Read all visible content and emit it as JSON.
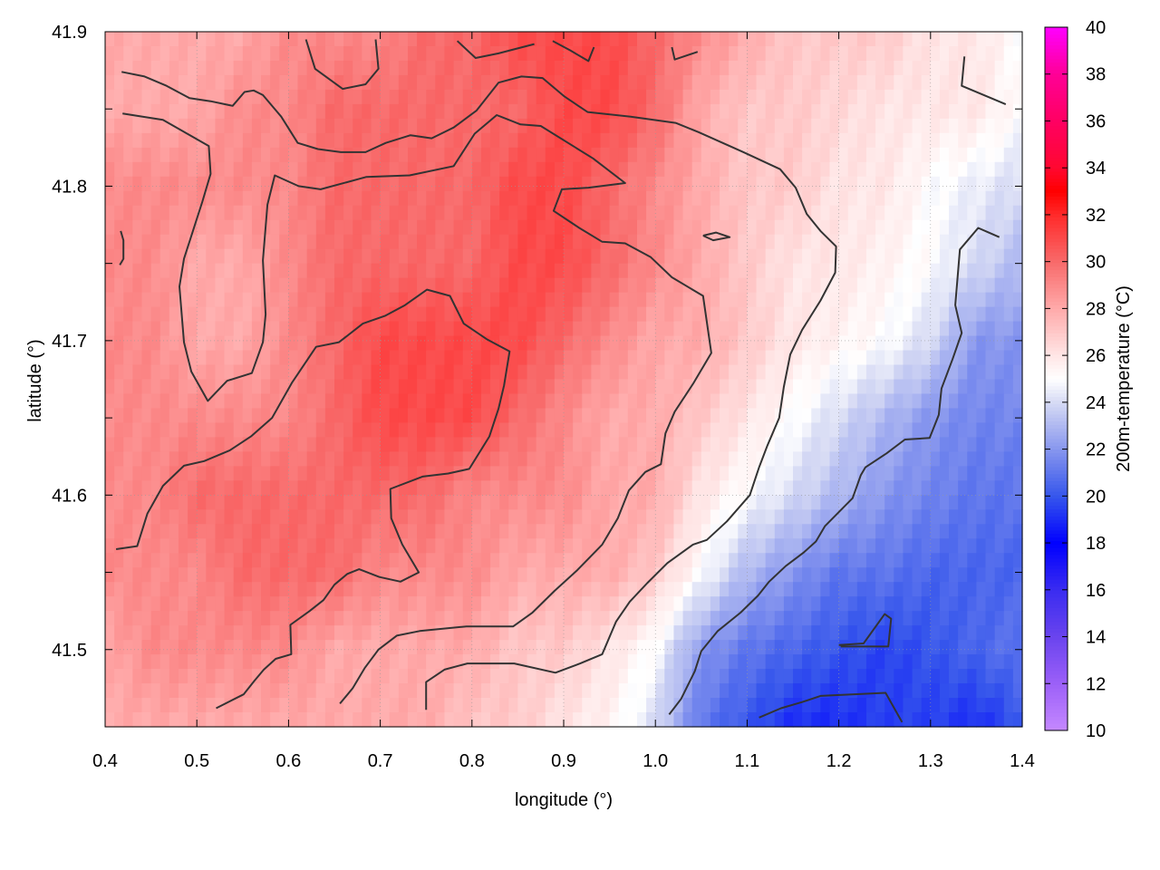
{
  "chart_data": {
    "type": "heatmap",
    "xlabel": "longitude (°)",
    "ylabel": "latitude (°)",
    "colorbar_label": "200m-temperature (°C)",
    "xlim": [
      0.4,
      1.4
    ],
    "ylim": [
      41.45,
      41.9
    ],
    "xticks": [
      "0.4",
      "0.5",
      "0.6",
      "0.7",
      "0.8",
      "0.9",
      "1.0",
      "1.1",
      "1.2",
      "1.3",
      "1.4"
    ],
    "yticks": [
      "41.5",
      "41.6",
      "41.7",
      "41.8",
      "41.9"
    ],
    "clim": [
      10,
      40
    ],
    "cticks": [
      "10",
      "12",
      "14",
      "16",
      "18",
      "20",
      "22",
      "24",
      "26",
      "28",
      "30",
      "32",
      "34",
      "36",
      "38",
      "40"
    ],
    "colormap": [
      [
        10,
        "#c488ff"
      ],
      [
        12,
        "#9c60f8"
      ],
      [
        14,
        "#6a44ee"
      ],
      [
        16,
        "#3a2cf0"
      ],
      [
        18,
        "#0000ff"
      ],
      [
        20,
        "#3656ec"
      ],
      [
        22,
        "#8796ee"
      ],
      [
        24,
        "#d6daf4"
      ],
      [
        25,
        "#ffffff"
      ],
      [
        26,
        "#ffe6e6"
      ],
      [
        28,
        "#ffaaaa"
      ],
      [
        30,
        "#f86a6a"
      ],
      [
        32,
        "#ff2a2a"
      ],
      [
        33,
        "#ff0000"
      ],
      [
        34,
        "#ff0830"
      ],
      [
        36,
        "#ff0062"
      ],
      [
        38,
        "#ff0096"
      ],
      [
        40,
        "#ff00ff"
      ]
    ],
    "grid_x": [
      0.4,
      0.45,
      0.5,
      0.55,
      0.6,
      0.65,
      0.7,
      0.75,
      0.8,
      0.85,
      0.9,
      0.95,
      1.0,
      1.05,
      1.1,
      1.15,
      1.2,
      1.25,
      1.3,
      1.35,
      1.4
    ],
    "grid_y": [
      41.9,
      41.85,
      41.8,
      41.75,
      41.7,
      41.65,
      41.6,
      41.55,
      41.5,
      41.45
    ],
    "z": [
      [
        28,
        28,
        28,
        28,
        29,
        29,
        29,
        30,
        30,
        31,
        31,
        31,
        30,
        29,
        28,
        27,
        27,
        27,
        26,
        26,
        25
      ],
      [
        28,
        28,
        28,
        29,
        29,
        30,
        30,
        30,
        30,
        30,
        31,
        31,
        30,
        28,
        27,
        27,
        26.5,
        26,
        26,
        26,
        25
      ],
      [
        29,
        29,
        29,
        29,
        29,
        30,
        30,
        30,
        30,
        31,
        31,
        30,
        29,
        28,
        27,
        27,
        26,
        26,
        25,
        24.5,
        24
      ],
      [
        29,
        29,
        28,
        28,
        29,
        30,
        30,
        30,
        30,
        31,
        31,
        30,
        29,
        28,
        27,
        26,
        26,
        25.5,
        25,
        24,
        23
      ],
      [
        29,
        29,
        28,
        28,
        29,
        30,
        31,
        31,
        31,
        31,
        30,
        29,
        28,
        28,
        27,
        26,
        25.5,
        25,
        24,
        22,
        22
      ],
      [
        29,
        29,
        29,
        29,
        29,
        30,
        31,
        31,
        31,
        30,
        29,
        28,
        28,
        27,
        26,
        25,
        24,
        23,
        22,
        21.5,
        21.5
      ],
      [
        29,
        29,
        30,
        30,
        30,
        30,
        30,
        30,
        29,
        29,
        29,
        28,
        28,
        26,
        25,
        24,
        23,
        22,
        21.5,
        21,
        21
      ],
      [
        29,
        29,
        29,
        30,
        30,
        30,
        29,
        29,
        29,
        28,
        28,
        28,
        27,
        25,
        23,
        22,
        21,
        21,
        20.5,
        20.5,
        20.5
      ],
      [
        28,
        29,
        29,
        29,
        29,
        28,
        28,
        28,
        28,
        27,
        27,
        26,
        25,
        22,
        21,
        20.5,
        20,
        19.5,
        20,
        20.5,
        21
      ],
      [
        28,
        28,
        28,
        28,
        28,
        28,
        28,
        28,
        27,
        27,
        26,
        25.5,
        24,
        21,
        20,
        19,
        19,
        19.5,
        19.5,
        19,
        20
      ]
    ],
    "contours": [
      [
        [
          0.419,
          41.847
        ],
        [
          0.463,
          41.843
        ],
        [
          0.513,
          41.826
        ],
        [
          0.515,
          41.808
        ],
        [
          0.506,
          41.79
        ],
        [
          0.486,
          41.753
        ],
        [
          0.481,
          41.735
        ],
        [
          0.486,
          41.699
        ],
        [
          0.494,
          41.68
        ],
        [
          0.512,
          41.661
        ],
        [
          0.533,
          41.674
        ],
        [
          0.56,
          41.679
        ],
        [
          0.572,
          41.699
        ],
        [
          0.575,
          41.717
        ],
        [
          0.572,
          41.752
        ],
        [
          0.577,
          41.788
        ],
        [
          0.585,
          41.807
        ],
        [
          0.611,
          41.8
        ],
        [
          0.635,
          41.798
        ],
        [
          0.685,
          41.806
        ],
        [
          0.732,
          41.807
        ],
        [
          0.78,
          41.813
        ],
        [
          0.803,
          41.834
        ],
        [
          0.827,
          41.846
        ],
        [
          0.853,
          41.84
        ],
        [
          0.875,
          41.839
        ],
        [
          0.932,
          41.818
        ],
        [
          0.967,
          41.802
        ],
        [
          0.927,
          41.799
        ],
        [
          0.898,
          41.798
        ],
        [
          0.889,
          41.784
        ],
        [
          0.917,
          41.773
        ],
        [
          0.942,
          41.764
        ],
        [
          0.967,
          41.763
        ],
        [
          0.995,
          41.754
        ],
        [
          1.018,
          41.741
        ],
        [
          1.052,
          41.729
        ],
        [
          1.061,
          41.692
        ],
        [
          1.041,
          41.672
        ],
        [
          1.021,
          41.654
        ],
        [
          1.011,
          41.64
        ],
        [
          1.006,
          41.62
        ],
        [
          0.989,
          41.615
        ],
        [
          0.971,
          41.603
        ],
        [
          0.959,
          41.585
        ],
        [
          0.942,
          41.568
        ],
        [
          0.914,
          41.551
        ],
        [
          0.89,
          41.538
        ],
        [
          0.866,
          41.524
        ],
        [
          0.845,
          41.515
        ],
        [
          0.794,
          41.515
        ],
        [
          0.743,
          41.512
        ],
        [
          0.718,
          41.509
        ],
        [
          0.698,
          41.5
        ],
        [
          0.683,
          41.488
        ],
        [
          0.67,
          41.475
        ],
        [
          0.656,
          41.465
        ]
      ],
      [
        [
          0.418,
          41.874
        ],
        [
          0.443,
          41.871
        ],
        [
          0.467,
          41.865
        ],
        [
          0.492,
          41.857
        ],
        [
          0.515,
          41.855
        ],
        [
          0.539,
          41.852
        ],
        [
          0.552,
          41.861
        ],
        [
          0.562,
          41.862
        ],
        [
          0.572,
          41.859
        ],
        [
          0.592,
          41.845
        ],
        [
          0.61,
          41.828
        ],
        [
          0.632,
          41.824
        ],
        [
          0.657,
          41.822
        ],
        [
          0.684,
          41.822
        ],
        [
          0.706,
          41.828
        ],
        [
          0.733,
          41.833
        ],
        [
          0.756,
          41.831
        ],
        [
          0.78,
          41.838
        ],
        [
          0.805,
          41.849
        ],
        [
          0.829,
          41.867
        ],
        [
          0.854,
          41.871
        ],
        [
          0.877,
          41.87
        ],
        [
          0.901,
          41.858
        ],
        [
          0.926,
          41.848
        ],
        [
          0.973,
          41.845
        ],
        [
          1.022,
          41.841
        ],
        [
          1.047,
          41.835
        ],
        [
          1.096,
          41.822
        ],
        [
          1.136,
          41.811
        ],
        [
          1.153,
          41.799
        ],
        [
          1.165,
          41.782
        ],
        [
          1.18,
          41.771
        ],
        [
          1.197,
          41.761
        ],
        [
          1.196,
          41.744
        ],
        [
          1.18,
          41.726
        ],
        [
          1.16,
          41.707
        ],
        [
          1.147,
          41.691
        ],
        [
          1.14,
          41.67
        ],
        [
          1.135,
          41.65
        ],
        [
          1.122,
          41.632
        ],
        [
          1.113,
          41.618
        ],
        [
          1.103,
          41.6
        ],
        [
          1.078,
          41.583
        ],
        [
          1.056,
          41.571
        ],
        [
          1.041,
          41.568
        ],
        [
          1.013,
          41.556
        ],
        [
          0.991,
          41.543
        ],
        [
          0.972,
          41.531
        ],
        [
          0.957,
          41.518
        ],
        [
          0.942,
          41.497
        ],
        [
          0.918,
          41.491
        ],
        [
          0.891,
          41.485
        ],
        [
          0.846,
          41.491
        ],
        [
          0.795,
          41.491
        ],
        [
          0.77,
          41.487
        ],
        [
          0.75,
          41.479
        ],
        [
          0.75,
          41.461
        ]
      ],
      [
        [
          0.412,
          41.565
        ],
        [
          0.435,
          41.567
        ],
        [
          0.446,
          41.588
        ],
        [
          0.463,
          41.606
        ],
        [
          0.486,
          41.619
        ],
        [
          0.508,
          41.622
        ],
        [
          0.536,
          41.629
        ],
        [
          0.559,
          41.638
        ],
        [
          0.582,
          41.65
        ],
        [
          0.604,
          41.673
        ],
        [
          0.63,
          41.696
        ],
        [
          0.655,
          41.699
        ],
        [
          0.681,
          41.711
        ],
        [
          0.705,
          41.716
        ],
        [
          0.727,
          41.723
        ],
        [
          0.751,
          41.733
        ],
        [
          0.776,
          41.729
        ],
        [
          0.791,
          41.711
        ],
        [
          0.816,
          41.701
        ],
        [
          0.841,
          41.693
        ],
        [
          0.835,
          41.671
        ],
        [
          0.829,
          41.656
        ],
        [
          0.819,
          41.638
        ],
        [
          0.797,
          41.617
        ],
        [
          0.774,
          41.614
        ],
        [
          0.746,
          41.612
        ],
        [
          0.711,
          41.604
        ],
        [
          0.712,
          41.585
        ],
        [
          0.724,
          41.568
        ],
        [
          0.742,
          41.55
        ],
        [
          0.722,
          41.544
        ],
        [
          0.699,
          41.547
        ],
        [
          0.677,
          41.552
        ],
        [
          0.664,
          41.549
        ],
        [
          0.65,
          41.542
        ],
        [
          0.638,
          41.532
        ],
        [
          0.623,
          41.525
        ],
        [
          0.602,
          41.516
        ],
        [
          0.603,
          41.497
        ],
        [
          0.586,
          41.494
        ],
        [
          0.573,
          41.487
        ],
        [
          0.563,
          41.48
        ],
        [
          0.551,
          41.471
        ],
        [
          0.521,
          41.462
        ]
      ],
      [
        [
          1.375,
          41.767
        ],
        [
          1.352,
          41.773
        ],
        [
          1.332,
          41.759
        ],
        [
          1.327,
          41.723
        ],
        [
          1.334,
          41.705
        ],
        [
          1.324,
          41.688
        ],
        [
          1.312,
          41.669
        ],
        [
          1.309,
          41.652
        ],
        [
          1.299,
          41.637
        ],
        [
          1.272,
          41.636
        ],
        [
          1.252,
          41.627
        ],
        [
          1.229,
          41.618
        ],
        [
          1.224,
          41.613
        ],
        [
          1.215,
          41.598
        ],
        [
          1.2,
          41.589
        ],
        [
          1.185,
          41.58
        ],
        [
          1.175,
          41.57
        ],
        [
          1.162,
          41.563
        ],
        [
          1.142,
          41.554
        ],
        [
          1.124,
          41.544
        ],
        [
          1.112,
          41.535
        ],
        [
          1.093,
          41.524
        ],
        [
          1.068,
          41.512
        ],
        [
          1.05,
          41.499
        ],
        [
          1.043,
          41.486
        ],
        [
          1.028,
          41.468
        ],
        [
          1.015,
          41.458
        ]
      ],
      [
        [
          1.113,
          41.456
        ],
        [
          1.137,
          41.462
        ],
        [
          1.16,
          41.466
        ],
        [
          1.18,
          41.47
        ],
        [
          1.251,
          41.472
        ],
        [
          1.269,
          41.453
        ]
      ],
      [
        [
          1.2,
          41.503
        ],
        [
          1.227,
          41.504
        ],
        [
          1.25,
          41.523
        ],
        [
          1.257,
          41.52
        ],
        [
          1.254,
          41.502
        ],
        [
          1.202,
          41.502
        ]
      ],
      [
        [
          1.052,
          41.768
        ],
        [
          1.066,
          41.77
        ],
        [
          1.081,
          41.767
        ],
        [
          1.063,
          41.765
        ],
        [
          1.052,
          41.768
        ]
      ],
      [
        [
          0.417,
          41.771
        ],
        [
          0.42,
          41.765
        ],
        [
          0.42,
          41.753
        ],
        [
          0.416,
          41.749
        ]
      ],
      [
        [
          0.619,
          41.895
        ],
        [
          0.629,
          41.876
        ],
        [
          0.659,
          41.863
        ],
        [
          0.684,
          41.866
        ],
        [
          0.698,
          41.876
        ],
        [
          0.695,
          41.895
        ]
      ],
      [
        [
          0.784,
          41.894
        ],
        [
          0.804,
          41.883
        ],
        [
          0.829,
          41.886
        ],
        [
          0.868,
          41.892
        ]
      ],
      [
        [
          0.888,
          41.894
        ],
        [
          0.907,
          41.888
        ],
        [
          0.927,
          41.881
        ],
        [
          0.933,
          41.89
        ]
      ],
      [
        [
          1.018,
          41.89
        ],
        [
          1.021,
          41.882
        ],
        [
          1.046,
          41.887
        ]
      ],
      [
        [
          1.337,
          41.884
        ],
        [
          1.334,
          41.865
        ],
        [
          1.382,
          41.853
        ]
      ]
    ]
  }
}
